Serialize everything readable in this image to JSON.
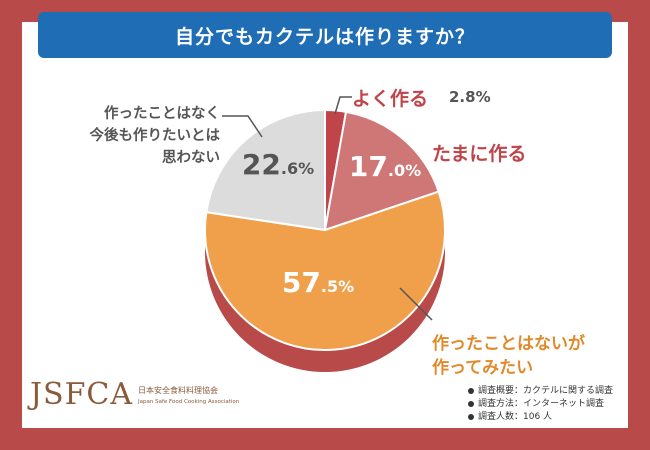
{
  "title": "自分でもカクテルは作りますか？",
  "colors": {
    "frame": "#b84a4a",
    "title_bar": "#1f6db5",
    "slice_often": "#c0454a",
    "slice_sometimes": "#cf7676",
    "slice_want": "#f0a04a",
    "slice_never": "#dcdcdc",
    "shadow": "#b84a4a"
  },
  "chart_data": {
    "type": "pie",
    "title": "自分でもカクテルは作りますか？",
    "slices": [
      {
        "label": "よく作る",
        "value": 2.8,
        "display_int": "2.8%",
        "display_dec": "",
        "color": "#c0454a"
      },
      {
        "label": "たまに作る",
        "value": 17.0,
        "display_int": "17",
        "display_dec": ".0%",
        "color": "#cf7676"
      },
      {
        "label": "作ったことはないが作ってみたい",
        "value": 57.5,
        "display_int": "57",
        "display_dec": ".5%",
        "color": "#f0a04a"
      },
      {
        "label": "作ったことはなく今後も作りたいとは思わない",
        "value": 22.6,
        "display_int": "22",
        "display_dec": ".6%",
        "color": "#dcdcdc"
      }
    ],
    "labels": {
      "often": "よく作る",
      "often_value": "2.8%",
      "sometimes": "たまに作る",
      "want_line1": "作ったことはないが",
      "want_line2": "作ってみたい",
      "never_line1": "作ったことはなく",
      "never_line2": "今後も作りたいとは",
      "never_line3": "思わない"
    }
  },
  "logo": {
    "main": "JSFCA",
    "jp": "日本安全食料料理協会",
    "en": "Japan Safe Food Cooking Association"
  },
  "notes": [
    "調査概要：カクテルに関する調査",
    "調査方法：インターネット調査",
    "調査人数：106 人"
  ]
}
